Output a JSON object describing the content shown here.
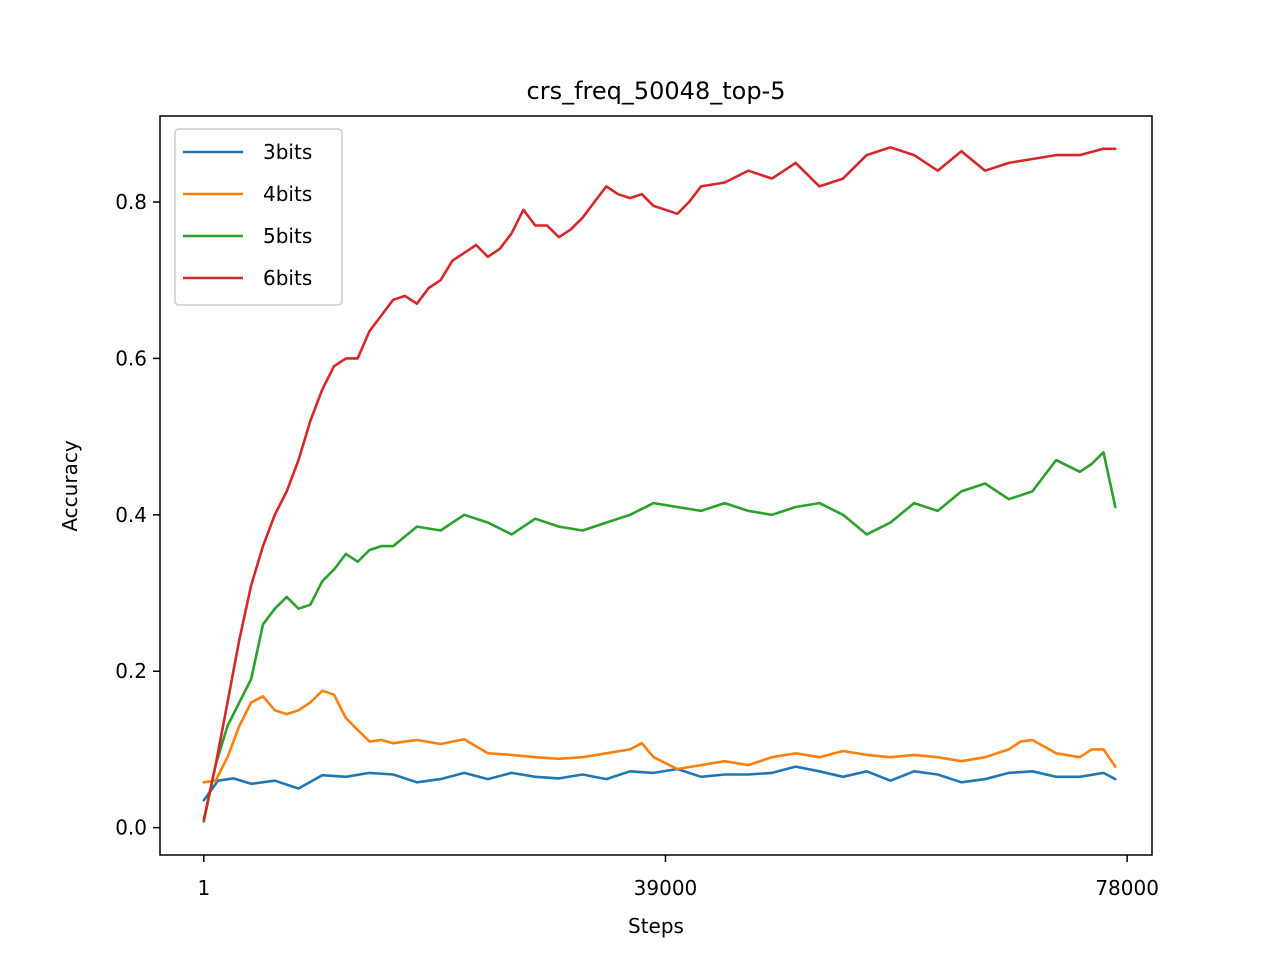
{
  "chart_data": {
    "type": "line",
    "title": "crs_freq_50048_top-5",
    "xlabel": "Steps",
    "ylabel": "Accuracy",
    "xlim": [
      -3700,
      80100
    ],
    "ylim": [
      -0.035,
      0.91
    ],
    "xticks": [
      1,
      39000,
      78000
    ],
    "xtick_labels": [
      "1",
      "39000",
      "78000"
    ],
    "yticks": [
      0.0,
      0.2,
      0.4,
      0.6,
      0.8
    ],
    "ytick_labels": [
      "0.0",
      "0.2",
      "0.4",
      "0.6",
      "0.8"
    ],
    "grid": false,
    "legend": "top-left",
    "series": [
      {
        "name": "3bits",
        "color": "#1f77b4",
        "x": [
          1,
          1200,
          2500,
          4000,
          6000,
          8000,
          10000,
          12000,
          14000,
          16000,
          18000,
          20000,
          22000,
          24000,
          26000,
          28000,
          30000,
          32000,
          34000,
          36000,
          38000,
          40000,
          42000,
          44000,
          46000,
          48000,
          50000,
          52000,
          54000,
          56000,
          58000,
          60000,
          62000,
          64000,
          66000,
          68000,
          70000,
          72000,
          74000,
          76000,
          77000
        ],
        "values": [
          0.035,
          0.06,
          0.063,
          0.056,
          0.06,
          0.05,
          0.067,
          0.065,
          0.07,
          0.068,
          0.058,
          0.062,
          0.07,
          0.062,
          0.07,
          0.065,
          0.063,
          0.068,
          0.062,
          0.072,
          0.07,
          0.075,
          0.065,
          0.068,
          0.068,
          0.07,
          0.078,
          0.072,
          0.065,
          0.072,
          0.06,
          0.072,
          0.068,
          0.058,
          0.062,
          0.07,
          0.072,
          0.065,
          0.065,
          0.07,
          0.062
        ]
      },
      {
        "name": "4bits",
        "color": "#ff7f0e",
        "x": [
          1,
          1000,
          2000,
          3000,
          4000,
          5000,
          6000,
          7000,
          8000,
          9000,
          10000,
          11000,
          12000,
          13000,
          14000,
          15000,
          16000,
          17000,
          18000,
          20000,
          22000,
          24000,
          26000,
          28000,
          30000,
          32000,
          34000,
          36000,
          37000,
          38000,
          40000,
          42000,
          44000,
          46000,
          48000,
          50000,
          52000,
          54000,
          56000,
          58000,
          60000,
          62000,
          64000,
          66000,
          68000,
          69000,
          70000,
          72000,
          74000,
          75000,
          76000,
          77000
        ],
        "values": [
          0.058,
          0.06,
          0.09,
          0.13,
          0.16,
          0.168,
          0.15,
          0.145,
          0.15,
          0.16,
          0.175,
          0.17,
          0.14,
          0.125,
          0.11,
          0.112,
          0.108,
          0.11,
          0.112,
          0.107,
          0.113,
          0.095,
          0.093,
          0.09,
          0.088,
          0.09,
          0.095,
          0.1,
          0.108,
          0.09,
          0.075,
          0.08,
          0.085,
          0.08,
          0.09,
          0.095,
          0.09,
          0.098,
          0.093,
          0.09,
          0.093,
          0.09,
          0.085,
          0.09,
          0.1,
          0.11,
          0.112,
          0.095,
          0.09,
          0.1,
          0.1,
          0.078
        ]
      },
      {
        "name": "5bits",
        "color": "#2ca02c",
        "x": [
          1,
          1000,
          2000,
          3000,
          4000,
          5000,
          6000,
          7000,
          8000,
          9000,
          10000,
          11000,
          12000,
          13000,
          14000,
          15000,
          16000,
          18000,
          20000,
          22000,
          24000,
          26000,
          28000,
          30000,
          32000,
          34000,
          36000,
          38000,
          40000,
          42000,
          44000,
          46000,
          48000,
          50000,
          52000,
          54000,
          56000,
          58000,
          60000,
          62000,
          64000,
          66000,
          68000,
          70000,
          72000,
          74000,
          75000,
          76000,
          77000
        ],
        "values": [
          0.008,
          0.08,
          0.13,
          0.16,
          0.19,
          0.26,
          0.28,
          0.295,
          0.28,
          0.285,
          0.315,
          0.33,
          0.35,
          0.34,
          0.355,
          0.36,
          0.36,
          0.385,
          0.38,
          0.4,
          0.39,
          0.375,
          0.395,
          0.385,
          0.38,
          0.39,
          0.4,
          0.415,
          0.41,
          0.405,
          0.415,
          0.405,
          0.4,
          0.41,
          0.415,
          0.4,
          0.375,
          0.39,
          0.415,
          0.405,
          0.43,
          0.44,
          0.42,
          0.43,
          0.47,
          0.455,
          0.465,
          0.48,
          0.41
        ]
      },
      {
        "name": "6bits",
        "color": "#d62728",
        "x": [
          1,
          1000,
          2000,
          3000,
          4000,
          5000,
          6000,
          7000,
          8000,
          9000,
          10000,
          11000,
          12000,
          13000,
          14000,
          15000,
          16000,
          17000,
          18000,
          19000,
          20000,
          21000,
          22000,
          23000,
          24000,
          25000,
          26000,
          27000,
          28000,
          29000,
          30000,
          31000,
          32000,
          33000,
          34000,
          35000,
          36000,
          37000,
          38000,
          39000,
          40000,
          41000,
          42000,
          44000,
          46000,
          48000,
          50000,
          52000,
          54000,
          56000,
          58000,
          60000,
          62000,
          64000,
          66000,
          68000,
          70000,
          72000,
          74000,
          76000,
          77000
        ],
        "values": [
          0.01,
          0.08,
          0.16,
          0.24,
          0.31,
          0.36,
          0.4,
          0.43,
          0.47,
          0.52,
          0.56,
          0.59,
          0.6,
          0.6,
          0.635,
          0.655,
          0.675,
          0.68,
          0.67,
          0.69,
          0.7,
          0.725,
          0.735,
          0.745,
          0.73,
          0.74,
          0.76,
          0.79,
          0.77,
          0.77,
          0.755,
          0.765,
          0.78,
          0.8,
          0.82,
          0.81,
          0.805,
          0.81,
          0.795,
          0.79,
          0.785,
          0.8,
          0.82,
          0.825,
          0.84,
          0.83,
          0.85,
          0.82,
          0.83,
          0.86,
          0.87,
          0.86,
          0.84,
          0.865,
          0.84,
          0.85,
          0.855,
          0.86,
          0.86,
          0.868,
          0.868
        ]
      }
    ]
  }
}
